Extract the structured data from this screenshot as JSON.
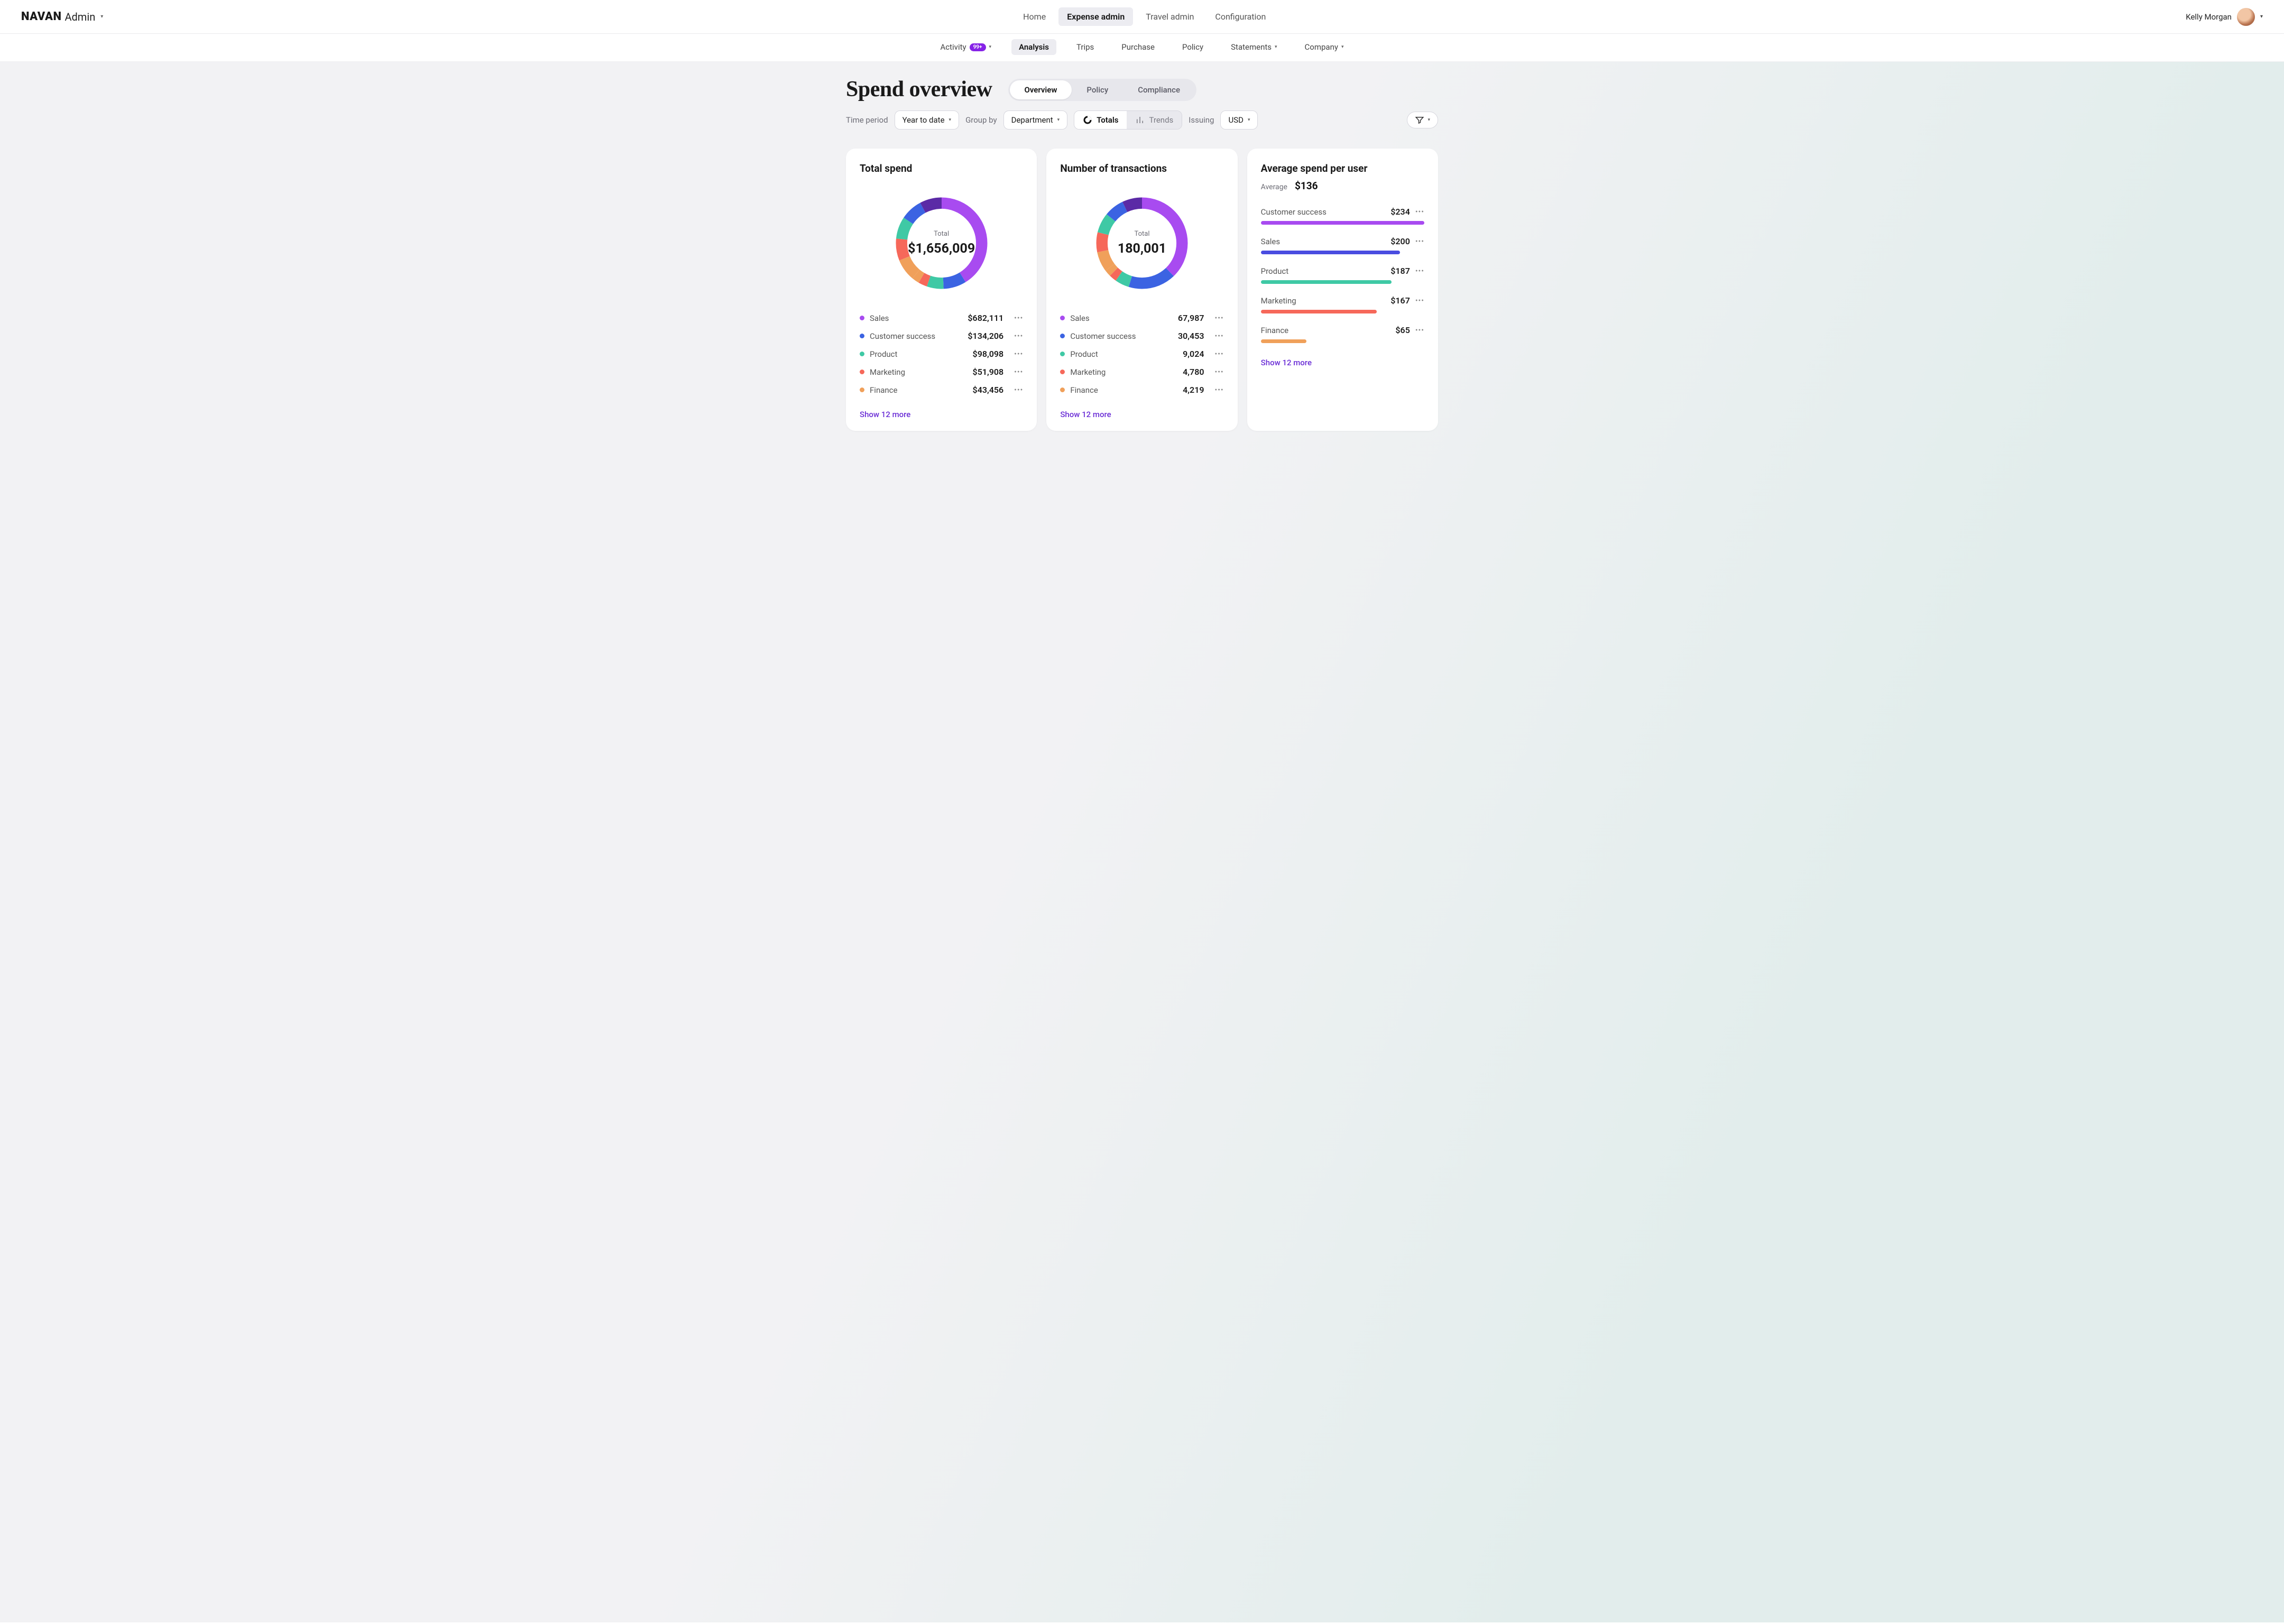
{
  "brand": {
    "name": "NAVAN",
    "sub": "Admin"
  },
  "topnav": {
    "items": [
      "Home",
      "Expense admin",
      "Travel admin",
      "Configuration"
    ],
    "active_index": 1
  },
  "user": {
    "name": "Kelly Morgan"
  },
  "subnav": {
    "items": [
      {
        "label": "Activity",
        "badge": "99+",
        "dropdown": true
      },
      {
        "label": "Analysis"
      },
      {
        "label": "Trips"
      },
      {
        "label": "Purchase"
      },
      {
        "label": "Policy"
      },
      {
        "label": "Statements",
        "dropdown": true
      },
      {
        "label": "Company",
        "dropdown": true
      }
    ],
    "active_index": 1
  },
  "page": {
    "title": "Spend overview",
    "tabs": [
      "Overview",
      "Policy",
      "Compliance"
    ],
    "active_tab_index": 0
  },
  "filters": {
    "time_label": "Time period",
    "time_value": "Year to date",
    "group_label": "Group by",
    "group_value": "Department",
    "view_segments": [
      "Totals",
      "Trends"
    ],
    "view_active_index": 0,
    "issuing_label": "Issuing",
    "issuing_value": "USD"
  },
  "palette": {
    "purple": "#a84bf0",
    "indigo": "#5140da",
    "blue": "#3b63e2",
    "teal": "#3fc9a5",
    "coral": "#f6685a",
    "orange": "#f0a05a",
    "deep_purple": "#5b2aa6",
    "link": "#6b2ed6",
    "muted": "#6d6d76",
    "card_bg": "#ffffff"
  },
  "cards": {
    "total_spend": {
      "title": "Total spend",
      "center_label": "Total",
      "center_value": "$1,656,009",
      "type": "donut",
      "slices": [
        {
          "name": "Sales",
          "value_label": "$682,111",
          "value": 682111,
          "color": "#a84bf0"
        },
        {
          "name": "Customer success",
          "value_label": "$134,206",
          "value": 134206,
          "color": "#3b63e2"
        },
        {
          "name": "Product",
          "value_label": "$98,098",
          "value": 98098,
          "color": "#3fc9a5"
        },
        {
          "name": "Marketing",
          "value_label": "$51,908",
          "value": 51908,
          "color": "#f6685a"
        },
        {
          "name": "Finance",
          "value_label": "$43,456",
          "value": 43456,
          "color": "#f0a05a"
        }
      ],
      "other_value": 646230,
      "other_segment_colors": [
        "#f0a05a",
        "#f6685a",
        "#3fc9a5",
        "#3b63e2",
        "#5b2aa6"
      ],
      "show_more": "Show 12 more"
    },
    "transactions": {
      "title": "Number of transactions",
      "center_label": "Total",
      "center_value": "180,001",
      "type": "donut",
      "slices": [
        {
          "name": "Sales",
          "value_label": "67,987",
          "value": 67987,
          "color": "#a84bf0"
        },
        {
          "name": "Customer success",
          "value_label": "30,453",
          "value": 30453,
          "color": "#3b63e2"
        },
        {
          "name": "Product",
          "value_label": "9,024",
          "value": 9024,
          "color": "#3fc9a5"
        },
        {
          "name": "Marketing",
          "value_label": "4,780",
          "value": 4780,
          "color": "#f6685a"
        },
        {
          "name": "Finance",
          "value_label": "4,219",
          "value": 4219,
          "color": "#f0a05a"
        }
      ],
      "other_value": 63538,
      "other_segment_colors": [
        "#f0a05a",
        "#f6685a",
        "#3fc9a5",
        "#3b63e2",
        "#5b2aa6"
      ],
      "show_more": "Show 12 more"
    },
    "avg_per_user": {
      "title": "Average spend per user",
      "average_label": "Average",
      "average_value": "$136",
      "type": "bar",
      "max": 234,
      "rows": [
        {
          "name": "Customer success",
          "value_label": "$234",
          "value": 234,
          "color": "#a84bf0"
        },
        {
          "name": "Sales",
          "value_label": "$200",
          "value": 200,
          "color": "#4a4de0"
        },
        {
          "name": "Product",
          "value_label": "$187",
          "value": 187,
          "color": "#3fc9a5"
        },
        {
          "name": "Marketing",
          "value_label": "$167",
          "value": 167,
          "color": "#f6685a"
        },
        {
          "name": "Finance",
          "value_label": "$65",
          "value": 65,
          "color": "#f0a05a"
        }
      ],
      "show_more": "Show 12 more"
    }
  }
}
